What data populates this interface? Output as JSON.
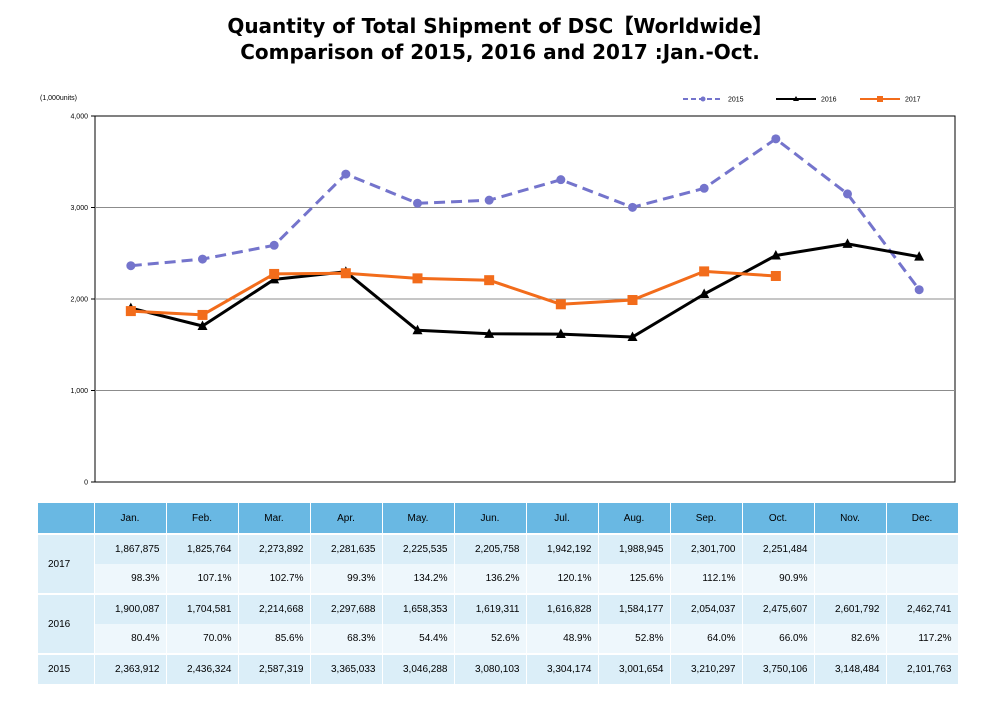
{
  "title_line1": "Quantity of Total Shipment of DSC【Worldwide】",
  "title_line2": "Comparison of 2015, 2016 and 2017 :Jan.-Oct.",
  "colors": {
    "s2015": "#7474cc",
    "s2016": "#000000",
    "s2017": "#f26c1b",
    "table_header": "#69b8e3"
  },
  "chart_data": {
    "type": "line",
    "unit_label": "(1,000units)",
    "ylim": [
      0,
      4000
    ],
    "yticks": [
      "0",
      "1,000",
      "2,000",
      "3,000",
      "4,000"
    ],
    "grid": true,
    "legend": "top-right",
    "categories": [
      "Jan.",
      "Feb.",
      "Mar.",
      "Apr.",
      "May.",
      "Jun.",
      "Jul.",
      "Aug.",
      "Sep.",
      "Oct.",
      "Nov.",
      "Dec."
    ],
    "series": [
      {
        "name": "2015",
        "style": "dashed",
        "marker": "circle",
        "values": [
          2363.912,
          2436.324,
          2587.319,
          3365.033,
          3046.288,
          3080.103,
          3304.174,
          3001.654,
          3210.297,
          3750.106,
          3148.484,
          2101.763
        ]
      },
      {
        "name": "2016",
        "style": "solid",
        "marker": "triangle",
        "values": [
          1900.087,
          1704.581,
          2214.668,
          2297.688,
          1658.353,
          1619.311,
          1616.828,
          1584.177,
          2054.037,
          2475.607,
          2601.792,
          2462.741
        ]
      },
      {
        "name": "2017",
        "style": "solid",
        "marker": "square",
        "values": [
          1867.875,
          1825.764,
          2273.892,
          2281.635,
          2225.535,
          2205.758,
          1942.192,
          1988.945,
          2301.7,
          2251.484,
          null,
          null
        ]
      }
    ]
  },
  "table": {
    "months": [
      "Jan.",
      "Feb.",
      "Mar.",
      "Apr.",
      "May.",
      "Jun.",
      "Jul.",
      "Aug.",
      "Sep.",
      "Oct.",
      "Nov.",
      "Dec."
    ],
    "rows": [
      {
        "year": "2017",
        "values": [
          "1,867,875",
          "1,825,764",
          "2,273,892",
          "2,281,635",
          "2,225,535",
          "2,205,758",
          "1,942,192",
          "1,988,945",
          "2,301,700",
          "2,251,484",
          "",
          ""
        ],
        "percents": [
          "98.3%",
          "107.1%",
          "102.7%",
          "99.3%",
          "134.2%",
          "136.2%",
          "120.1%",
          "125.6%",
          "112.1%",
          "90.9%",
          "",
          ""
        ]
      },
      {
        "year": "2016",
        "values": [
          "1,900,087",
          "1,704,581",
          "2,214,668",
          "2,297,688",
          "1,658,353",
          "1,619,311",
          "1,616,828",
          "1,584,177",
          "2,054,037",
          "2,475,607",
          "2,601,792",
          "2,462,741"
        ],
        "percents": [
          "80.4%",
          "70.0%",
          "85.6%",
          "68.3%",
          "54.4%",
          "52.6%",
          "48.9%",
          "52.8%",
          "64.0%",
          "66.0%",
          "82.6%",
          "117.2%"
        ]
      },
      {
        "year": "2015",
        "values": [
          "2,363,912",
          "2,436,324",
          "2,587,319",
          "3,365,033",
          "3,046,288",
          "3,080,103",
          "3,304,174",
          "3,001,654",
          "3,210,297",
          "3,750,106",
          "3,148,484",
          "2,101,763"
        ]
      }
    ]
  }
}
